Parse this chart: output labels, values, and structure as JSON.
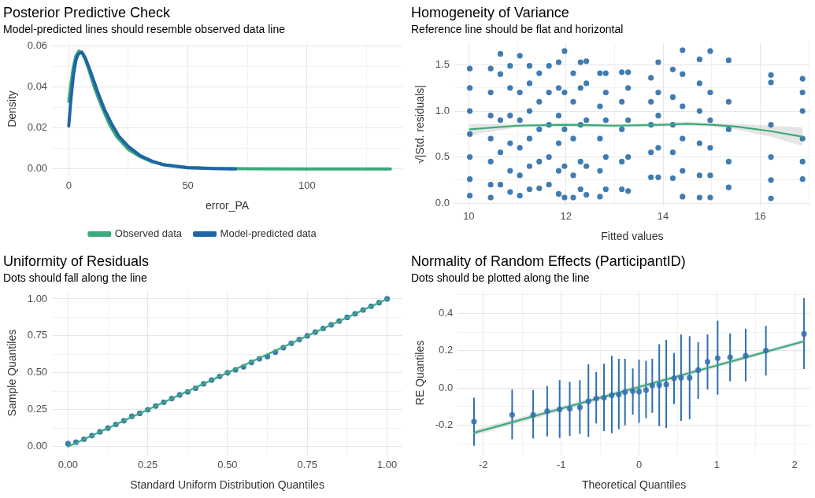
{
  "chart_data": [
    {
      "type": "line",
      "title": "Posterior Predictive Check",
      "subtitle": "Model-predicted lines should resemble observed data line",
      "xlabel": "error_PA",
      "ylabel": "Density",
      "xlim": [
        -7,
        140
      ],
      "ylim": [
        -0.003,
        0.0615
      ],
      "xticks": [
        0,
        {
          "value": 25,
          "label": null
        },
        50,
        {
          "value": 75,
          "label": null
        },
        100,
        {
          "value": 125,
          "label": null
        }
      ],
      "yticks": [
        {
          "value": 0,
          "label": "0.00"
        },
        {
          "value": 0.01,
          "label": null
        },
        {
          "value": 0.02,
          "label": "0.02"
        },
        {
          "value": 0.03,
          "label": null
        },
        {
          "value": 0.04,
          "label": "0.04"
        },
        {
          "value": 0.05,
          "label": null
        },
        {
          "value": 0.06,
          "label": "0.06"
        }
      ],
      "grid": true,
      "legend": "bottom",
      "series": [
        {
          "name": "Observed data",
          "color": "#3aab7a",
          "x": [
            0,
            1,
            2,
            3,
            4.3,
            6,
            8,
            11,
            14,
            17,
            20,
            25,
            30,
            35,
            40,
            50,
            60,
            75,
            100,
            135
          ],
          "values": [
            0.033,
            0.042,
            0.05,
            0.055,
            0.0575,
            0.056,
            0.05,
            0.039,
            0.03,
            0.022,
            0.016,
            0.0095,
            0.006,
            0.0035,
            0.002,
            0.0007,
            0.0003,
            0.0001,
            0,
            0
          ]
        },
        {
          "name": "Model-predicted data",
          "color": "#1f65a3",
          "x": [
            0,
            1,
            2,
            3,
            4,
            5.5,
            7,
            9,
            12,
            15,
            18,
            21,
            25,
            30,
            35,
            40,
            50,
            60,
            70
          ],
          "values": [
            0.021,
            0.035,
            0.046,
            0.053,
            0.056,
            0.057,
            0.054,
            0.048,
            0.038,
            0.029,
            0.022,
            0.016,
            0.011,
            0.0065,
            0.0038,
            0.002,
            0.0006,
            0.0002,
            0
          ]
        }
      ]
    },
    {
      "type": "scatter",
      "title": "Homogeneity of Variance",
      "subtitle": "Reference line should be flat and horizontal",
      "xlabel": "Fitted values",
      "ylabel": "√|Std. residuals|",
      "xlim": [
        9.7,
        17.03
      ],
      "ylim": [
        -0.03,
        1.74
      ],
      "xticks": [
        10,
        {
          "value": 11,
          "label": null
        },
        12,
        {
          "value": 13,
          "label": null
        },
        14,
        {
          "value": 15,
          "label": null
        },
        16,
        {
          "value": 17,
          "label": null
        }
      ],
      "yticks": [
        {
          "value": 0,
          "label": "0.0"
        },
        {
          "value": 0.25,
          "label": null
        },
        {
          "value": 0.5,
          "label": "0.5"
        },
        {
          "value": 0.75,
          "label": null
        },
        {
          "value": 1,
          "label": "1.0"
        },
        {
          "value": 1.25,
          "label": null
        },
        {
          "value": 1.5,
          "label": "1.5"
        }
      ],
      "grid": true,
      "marker": "circle",
      "series": [
        {
          "color": "#1f65a3",
          "x": [
            10.02,
            10.02,
            10.02,
            10.02,
            10.02,
            10.02,
            10.02,
            10.45,
            10.45,
            10.45,
            10.45,
            10.45,
            10.45,
            10.45,
            10.65,
            10.65,
            10.65,
            10.65,
            10.65,
            10.85,
            10.85,
            10.85,
            10.85,
            10.85,
            10.85,
            11.05,
            11.05,
            11.05,
            11.05,
            11.05,
            11.05,
            11.25,
            11.25,
            11.25,
            11.25,
            11.25,
            11.25,
            11.45,
            11.45,
            11.45,
            11.45,
            11.45,
            11.65,
            11.65,
            11.65,
            11.65,
            11.65,
            11.85,
            11.85,
            11.85,
            11.85,
            11.85,
            11.85,
            11.97,
            11.97,
            11.97,
            11.97,
            11.97,
            12.15,
            12.15,
            12.15,
            12.15,
            12.15,
            12.3,
            12.3,
            12.3,
            12.3,
            12.3,
            12.42,
            12.42,
            12.42,
            12.42,
            12.42,
            12.7,
            12.7,
            12.7,
            12.7,
            12.7,
            12.82,
            12.82,
            12.82,
            12.82,
            12.82,
            13.15,
            13.15,
            13.15,
            13.15,
            13.15,
            13.28,
            13.28,
            13.28,
            13.28,
            13.28,
            13.75,
            13.75,
            13.75,
            13.75,
            13.75,
            13.9,
            13.9,
            13.9,
            13.9,
            13.9,
            14.2,
            14.2,
            14.2,
            14.2,
            14.2,
            14.4,
            14.4,
            14.4,
            14.4,
            14.4,
            14.4,
            14.75,
            14.75,
            14.75,
            14.75,
            14.75,
            14.75,
            14.97,
            14.97,
            14.97,
            14.97,
            14.97,
            14.97,
            15.35,
            15.35,
            15.35,
            15.35,
            15.35,
            16.22,
            16.22,
            16.22,
            16.22,
            16.22,
            16.22,
            16.87,
            16.87,
            16.87,
            16.87,
            16.87,
            16.87
          ],
          "values": [
            0.08,
            0.26,
            0.5,
            0.75,
            1.0,
            1.25,
            1.46,
            0.06,
            0.2,
            0.45,
            0.7,
            0.95,
            1.2,
            1.46,
            0.2,
            0.55,
            0.9,
            1.4,
            1.62,
            0.12,
            0.35,
            0.65,
            0.95,
            1.25,
            1.49,
            0.08,
            0.3,
            0.6,
            0.9,
            1.2,
            1.6,
            0.15,
            0.4,
            0.7,
            1.0,
            1.3,
            1.49,
            0.16,
            0.45,
            0.8,
            1.1,
            1.41,
            0.2,
            0.5,
            0.85,
            1.2,
            1.49,
            0.1,
            0.35,
            0.65,
            0.95,
            1.25,
            1.53,
            0.06,
            0.4,
            0.8,
            1.2,
            1.65,
            0.06,
            0.3,
            0.7,
            1.1,
            1.41,
            0.15,
            0.45,
            0.85,
            1.25,
            1.53,
            0.09,
            0.4,
            0.9,
            1.3,
            1.54,
            0.07,
            0.35,
            0.7,
            1.05,
            1.41,
            0.15,
            0.5,
            0.9,
            1.2,
            1.41,
            0.15,
            0.45,
            0.8,
            1.1,
            1.42,
            0.13,
            0.5,
            0.9,
            1.25,
            1.42,
            0.28,
            0.55,
            0.85,
            1.1,
            1.36,
            0.28,
            0.6,
            0.95,
            1.2,
            1.53,
            0.27,
            0.55,
            0.85,
            1.15,
            1.45,
            0.07,
            0.35,
            0.7,
            1.05,
            1.4,
            1.66,
            0.06,
            0.3,
            0.65,
            1.0,
            1.3,
            1.56,
            0.06,
            0.3,
            0.6,
            0.9,
            1.2,
            1.65,
            0.17,
            0.45,
            0.8,
            1.1,
            1.55,
            0.05,
            0.25,
            0.5,
            0.85,
            1.31,
            1.39,
            0.26,
            0.45,
            0.7,
            1.0,
            1.2,
            1.35
          ]
        },
        {
          "type": "line",
          "marker": "none",
          "color": "#3aab7a",
          "x": [
            10.02,
            11,
            12,
            13,
            14,
            14.5,
            15,
            15.5,
            16.22,
            16.87
          ],
          "values": [
            0.8,
            0.84,
            0.85,
            0.84,
            0.85,
            0.86,
            0.85,
            0.83,
            0.78,
            0.72
          ],
          "lower": [
            0.74,
            0.82,
            0.83,
            0.82,
            0.83,
            0.84,
            0.83,
            0.8,
            0.72,
            0.62
          ],
          "upper": [
            0.86,
            0.86,
            0.87,
            0.86,
            0.87,
            0.88,
            0.87,
            0.86,
            0.84,
            0.82
          ]
        }
      ]
    },
    {
      "type": "scatter",
      "title": "Uniformity of Residuals",
      "subtitle": "Dots should fall along the line",
      "xlabel": "Standard Uniform Distribution Quantiles",
      "ylabel": "Sample Quantiles",
      "xlim": [
        -0.05,
        1.048
      ],
      "ylim": [
        -0.053,
        1.051
      ],
      "xticks": [
        {
          "value": 0,
          "label": "0.00"
        },
        {
          "value": 0.125,
          "label": null
        },
        {
          "value": 0.25,
          "label": "0.25"
        },
        {
          "value": 0.375,
          "label": null
        },
        {
          "value": 0.5,
          "label": "0.50"
        },
        {
          "value": 0.625,
          "label": null
        },
        {
          "value": 0.75,
          "label": "0.75"
        },
        {
          "value": 0.875,
          "label": null
        },
        {
          "value": 1,
          "label": "1.00"
        }
      ],
      "yticks": [
        {
          "value": 0,
          "label": "0.00"
        },
        {
          "value": 0.125,
          "label": null
        },
        {
          "value": 0.25,
          "label": "0.25"
        },
        {
          "value": 0.375,
          "label": null
        },
        {
          "value": 0.5,
          "label": "0.50"
        },
        {
          "value": 0.625,
          "label": null
        },
        {
          "value": 0.75,
          "label": "0.75"
        },
        {
          "value": 0.875,
          "label": null
        },
        {
          "value": 1,
          "label": "1.00"
        }
      ],
      "grid": true,
      "marker": "circle",
      "series": [
        {
          "color": "#1f65a3",
          "x": [
            0,
            0.025,
            0.05,
            0.075,
            0.1,
            0.125,
            0.15,
            0.175,
            0.2,
            0.225,
            0.25,
            0.275,
            0.3,
            0.325,
            0.35,
            0.375,
            0.4,
            0.425,
            0.45,
            0.475,
            0.5,
            0.525,
            0.55,
            0.575,
            0.6,
            0.625,
            0.65,
            0.675,
            0.7,
            0.725,
            0.75,
            0.775,
            0.8,
            0.825,
            0.85,
            0.875,
            0.9,
            0.925,
            0.95,
            0.975,
            1
          ],
          "values": [
            0.02,
            0.03,
            0.05,
            0.075,
            0.1,
            0.125,
            0.15,
            0.175,
            0.205,
            0.225,
            0.25,
            0.275,
            0.3,
            0.325,
            0.35,
            0.37,
            0.395,
            0.425,
            0.45,
            0.475,
            0.5,
            0.52,
            0.54,
            0.57,
            0.595,
            0.61,
            0.64,
            0.67,
            0.7,
            0.725,
            0.75,
            0.775,
            0.8,
            0.825,
            0.85,
            0.875,
            0.9,
            0.925,
            0.95,
            0.975,
            1
          ]
        },
        {
          "type": "line",
          "marker": "none",
          "color": "#3aab7a",
          "x": [
            0,
            1
          ],
          "values": [
            0,
            1
          ]
        }
      ]
    },
    {
      "type": "scatter",
      "title": "Normality of Random Effects (ParticipantID)",
      "subtitle": "Dots should be plotted along the line",
      "xlabel": "Theoretical Quantiles",
      "ylabel": "RE Quantiles",
      "xlim": [
        -2.33,
        2.2
      ],
      "ylim": [
        -0.356,
        0.518
      ],
      "xticks": [
        {
          "value": -2,
          "label": "-2"
        },
        {
          "value": -1.5,
          "label": null
        },
        {
          "value": -1,
          "label": "-1"
        },
        {
          "value": -0.5,
          "label": null
        },
        0,
        {
          "value": 0.5,
          "label": null
        },
        1,
        {
          "value": 1.5,
          "label": null
        },
        2
      ],
      "yticks": [
        {
          "value": -0.3,
          "label": null
        },
        {
          "value": -0.2,
          "label": "-0.2"
        },
        {
          "value": -0.1,
          "label": null
        },
        {
          "value": 0,
          "label": "0.0"
        },
        {
          "value": 0.1,
          "label": null
        },
        {
          "value": 0.2,
          "label": "0.2"
        },
        {
          "value": 0.3,
          "label": null
        },
        {
          "value": 0.4,
          "label": "0.4"
        },
        {
          "value": 0.5,
          "label": null
        }
      ],
      "grid": true,
      "marker": "circle",
      "series": [
        {
          "type": "line",
          "marker": "none",
          "color": "#3aab7a",
          "x": [
            -2.12,
            2.12
          ],
          "values": [
            -0.24,
            0.251
          ],
          "lower": [
            -0.255,
            0.24
          ],
          "upper": [
            -0.225,
            0.262
          ]
        },
        {
          "color": "#2f6fb0",
          "x": [
            -2.12,
            -1.63,
            -1.36,
            -1.18,
            -1.02,
            -0.89,
            -0.76,
            -0.65,
            -0.55,
            -0.45,
            -0.35,
            -0.26,
            -0.18,
            -0.08,
            0,
            0.09,
            0.17,
            0.26,
            0.35,
            0.45,
            0.54,
            0.65,
            0.76,
            0.88,
            1.01,
            1.17,
            1.37,
            1.63,
            2.12
          ],
          "values": [
            -0.18,
            -0.144,
            -0.144,
            -0.124,
            -0.115,
            -0.111,
            -0.104,
            -0.071,
            -0.056,
            -0.052,
            -0.039,
            -0.035,
            -0.022,
            -0.017,
            -0.019,
            -0.011,
            0.013,
            0.016,
            0.019,
            0.052,
            0.055,
            0.055,
            0.096,
            0.141,
            0.16,
            0.165,
            0.173,
            0.201,
            0.29
          ],
          "errors": [
            [
              -0.31,
              -0.052
            ],
            [
              -0.275,
              -0.008
            ],
            [
              -0.271,
              -0.011
            ],
            [
              -0.259,
              0.011
            ],
            [
              -0.268,
              0.042
            ],
            [
              -0.256,
              0.033
            ],
            [
              -0.246,
              0.042
            ],
            [
              -0.262,
              0.127
            ],
            [
              -0.19,
              0.086
            ],
            [
              -0.231,
              0.13
            ],
            [
              -0.243,
              0.173
            ],
            [
              -0.221,
              0.157
            ],
            [
              -0.2,
              0.157
            ],
            [
              -0.143,
              0.105
            ],
            [
              -0.187,
              0.152
            ],
            [
              -0.162,
              0.146
            ],
            [
              -0.133,
              0.157
            ],
            [
              -0.204,
              0.235
            ],
            [
              -0.215,
              0.259
            ],
            [
              -0.086,
              0.188
            ],
            [
              -0.176,
              0.287
            ],
            [
              -0.168,
              0.278
            ],
            [
              -0.058,
              0.246
            ],
            [
              -0.008,
              0.287
            ],
            [
              -0.036,
              0.361
            ],
            [
              0.036,
              0.293
            ],
            [
              0.036,
              0.318
            ],
            [
              0.067,
              0.333
            ],
            [
              0.102,
              0.482
            ]
          ]
        }
      ]
    }
  ]
}
